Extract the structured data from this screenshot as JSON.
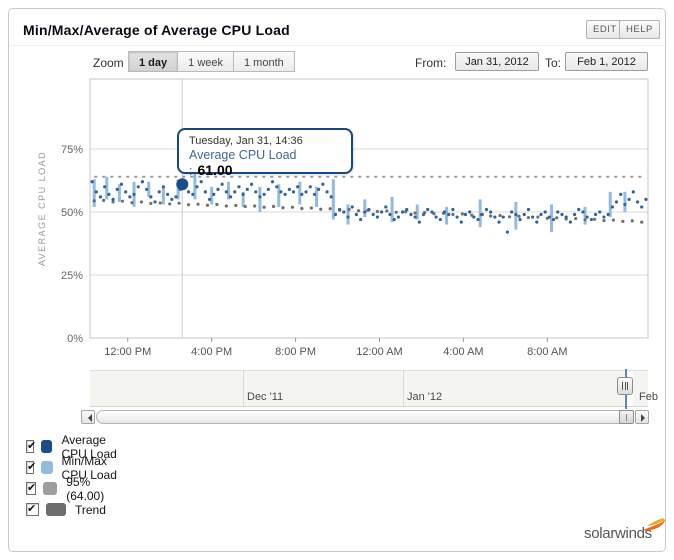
{
  "header": {
    "title": "Min/Max/Average of Average CPU Load",
    "edit_label": "EDIT",
    "help_label": "HELP"
  },
  "controls": {
    "zoom_label": "Zoom",
    "zoom_options": [
      {
        "label": "1 day",
        "selected": true
      },
      {
        "label": "1 week",
        "selected": false
      },
      {
        "label": "1 month",
        "selected": false
      }
    ],
    "from_label": "From:",
    "from_value": "Jan 31, 2012",
    "to_label": "To:",
    "to_value": "Feb 1, 2012"
  },
  "tooltip": {
    "title": "Tuesday, Jan 31, 14:36",
    "series_label": "Average CPU Load :",
    "value": "61.00"
  },
  "chart_data": {
    "type": "scatter",
    "title": "Min/Max/Average of Average CPU Load",
    "xlabel": "",
    "ylabel": "AVERAGE CPU LOAD",
    "ylim": [
      0,
      100
    ],
    "grid": true,
    "legend_position": "bottom-left",
    "ytick_values": [
      0,
      25,
      50,
      75
    ],
    "ytick_labels": [
      "0%",
      "25%",
      "50%",
      "75%"
    ],
    "xtick_hours": [
      12,
      16,
      20,
      24,
      28,
      32
    ],
    "xtick_labels": [
      "12:00 PM",
      "4:00 PM",
      "8:00 PM",
      "12:00 AM",
      "4:00 AM",
      "8:00 AM"
    ],
    "x_range_hours": [
      10.2,
      36.8
    ],
    "percentile_95": 64.0,
    "selected_point": {
      "hour": 14.6,
      "value": 61.0,
      "label": "Tuesday, Jan 31, 14:36"
    },
    "series": [
      {
        "name": "Average CPU Load",
        "type": "scatter",
        "color": "#2e6499",
        "start_hour": 10.3,
        "step_hours": 0.2,
        "values": [
          62,
          58,
          56,
          60,
          57,
          55,
          59,
          61,
          58,
          56,
          57,
          60,
          62,
          59,
          56,
          54,
          58,
          60,
          57,
          55,
          56,
          59,
          61,
          58,
          57,
          60,
          62,
          58,
          55,
          57,
          59,
          61,
          58,
          56,
          58,
          60,
          57,
          59,
          61,
          58,
          56,
          57,
          59,
          62,
          60,
          58,
          57,
          59,
          58,
          60,
          57,
          58,
          60,
          57,
          59,
          61,
          58,
          56,
          49,
          51,
          50,
          48,
          52,
          49,
          47,
          50,
          51,
          49,
          48,
          50,
          52,
          49,
          47,
          48,
          50,
          51,
          49,
          48,
          46,
          49,
          51,
          50,
          48,
          47,
          50,
          49,
          51,
          48,
          46,
          49,
          50,
          48,
          47,
          49,
          51,
          50,
          48,
          46,
          48,
          42,
          50,
          49,
          47,
          49,
          51,
          48,
          46,
          49,
          50,
          48,
          47,
          50,
          49,
          48,
          46,
          49,
          51,
          50,
          48,
          47,
          49,
          50,
          48,
          49,
          52,
          54,
          57,
          53,
          55,
          58,
          54,
          52,
          55
        ]
      },
      {
        "name": "Min/Max CPU Load",
        "type": "ranges",
        "color": "#92bbdf",
        "ranges": [
          [
            10.4,
            52,
            63
          ],
          [
            11.0,
            55,
            64
          ],
          [
            11.6,
            54,
            61
          ],
          [
            12.3,
            52,
            62
          ],
          [
            13.0,
            56,
            62
          ],
          [
            13.7,
            53,
            60
          ],
          [
            14.4,
            55,
            63
          ],
          [
            15.2,
            55,
            65
          ],
          [
            16.0,
            53,
            60
          ],
          [
            16.8,
            55,
            62
          ],
          [
            17.5,
            52,
            58
          ],
          [
            18.3,
            50,
            60
          ],
          [
            19.2,
            52,
            61
          ],
          [
            20.2,
            53,
            62
          ],
          [
            21.0,
            52,
            60
          ],
          [
            21.8,
            47,
            63
          ],
          [
            22.5,
            45,
            53
          ],
          [
            23.3,
            48,
            55
          ],
          [
            24.6,
            46,
            56
          ],
          [
            25.8,
            47,
            53
          ],
          [
            27.2,
            45,
            52
          ],
          [
            28.8,
            44,
            55
          ],
          [
            30.5,
            43,
            54
          ],
          [
            32.2,
            42,
            53
          ],
          [
            33.8,
            45,
            52
          ],
          [
            35.0,
            48,
            58
          ],
          [
            35.7,
            50,
            58
          ]
        ]
      },
      {
        "name": "95% (64.00)",
        "type": "threshold-line",
        "color": "#9e9e9e",
        "value": 64.0
      },
      {
        "name": "Trend",
        "type": "scatter",
        "color": "#6f6f6f",
        "start_hour": 10.4,
        "step_hours": 0.45,
        "values": [
          54.4,
          54.6,
          54.0,
          54.3,
          53.7,
          54.0,
          53.4,
          53.6,
          53.2,
          53.5,
          52.9,
          53.1,
          52.7,
          53.0,
          52.4,
          52.6,
          52.2,
          52.4,
          51.9,
          52.2,
          51.7,
          51.9,
          51.4,
          51.6,
          51.1,
          51.3,
          50.8,
          51.0,
          50.5,
          50.7,
          50.2,
          50.4,
          49.9,
          50.1,
          49.6,
          49.8,
          49.3,
          49.5,
          49.0,
          49.2,
          48.7,
          48.9,
          48.4,
          48.6,
          48.1,
          48.3,
          47.8,
          48.0,
          47.5,
          47.7,
          47.2,
          47.4,
          46.9,
          47.1,
          46.6,
          46.8,
          46.3,
          46.5,
          46.0
        ]
      }
    ]
  },
  "navigator": {
    "labels": [
      {
        "text": "Dec '11",
        "x": 238
      },
      {
        "text": "Jan '12",
        "x": 398
      },
      {
        "text": "Feb",
        "x": 630
      }
    ]
  },
  "legend": {
    "items": [
      {
        "label": "Average CPU Load",
        "color": "#1b4e82",
        "checked": true
      },
      {
        "label": "Min/Max CPU Load",
        "color": "#92bbdf",
        "checked": true
      },
      {
        "label": "95% (64.00)",
        "color": "#9e9e9e",
        "checked": true
      },
      {
        "label": "Trend",
        "color": "#6e6e6e",
        "checked": true
      }
    ]
  },
  "logo": {
    "text": "solarwinds"
  },
  "colors": {
    "accent_dark_blue": "#1b4e82",
    "light_blue": "#92bbdf",
    "crosshair": "#cccccc",
    "gridline": "#d8d8d8"
  }
}
